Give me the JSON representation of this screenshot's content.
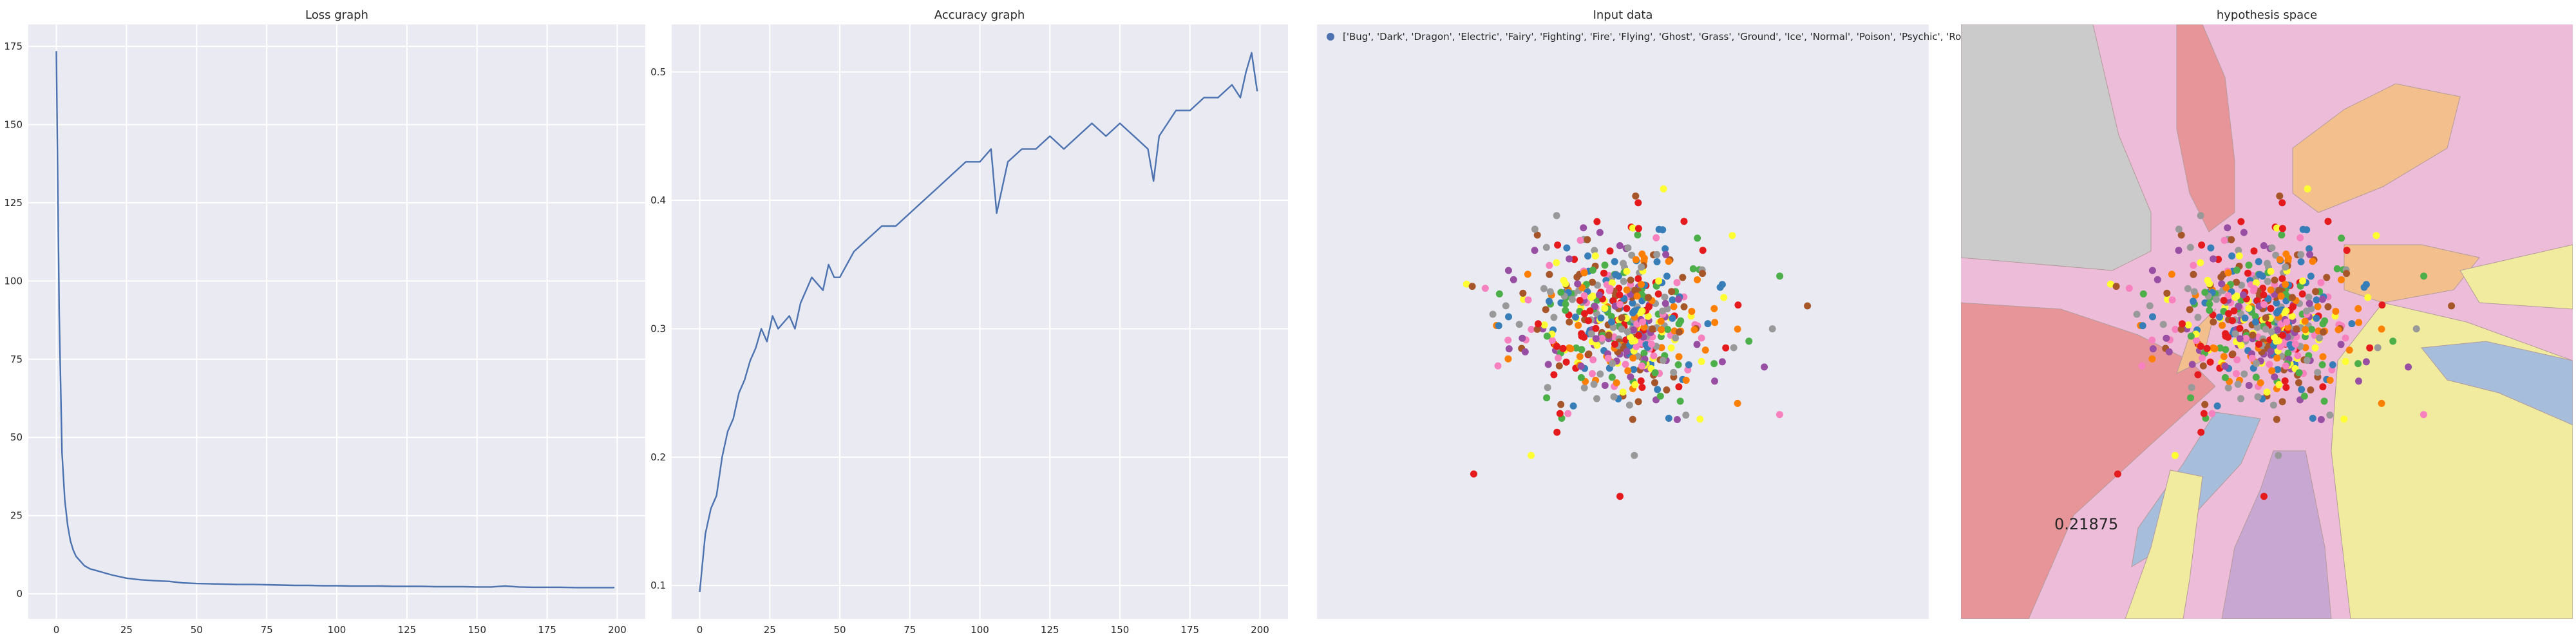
{
  "chart_data": [
    {
      "type": "line",
      "title": "Loss graph",
      "xlabel": "",
      "ylabel": "",
      "xlim": [
        -10,
        210
      ],
      "ylim": [
        -8,
        182
      ],
      "xticks": [
        "0",
        "25",
        "50",
        "75",
        "100",
        "125",
        "150",
        "175",
        "200"
      ],
      "yticks": [
        "0",
        "25",
        "50",
        "75",
        "100",
        "125",
        "150",
        "175"
      ],
      "grid": true,
      "x": [
        0,
        1,
        2,
        3,
        4,
        5,
        6,
        7,
        8,
        9,
        10,
        12,
        14,
        16,
        18,
        20,
        25,
        30,
        35,
        40,
        45,
        50,
        55,
        60,
        65,
        70,
        75,
        80,
        85,
        90,
        95,
        100,
        105,
        110,
        115,
        120,
        125,
        130,
        135,
        140,
        145,
        150,
        155,
        160,
        165,
        170,
        175,
        180,
        185,
        190,
        195,
        199
      ],
      "values": [
        173.5,
        90,
        45,
        30,
        22,
        17,
        14,
        12,
        11,
        10,
        9,
        8,
        7.5,
        7,
        6.5,
        6,
        5,
        4.5,
        4.2,
        4,
        3.5,
        3.3,
        3.2,
        3.1,
        3,
        3,
        2.9,
        2.8,
        2.7,
        2.7,
        2.6,
        2.6,
        2.5,
        2.5,
        2.5,
        2.4,
        2.4,
        2.4,
        2.3,
        2.3,
        2.3,
        2.2,
        2.2,
        2.5,
        2.2,
        2.1,
        2.1,
        2.1,
        2,
        2,
        2,
        2
      ]
    },
    {
      "type": "line",
      "title": "Accuracy graph",
      "xlabel": "",
      "ylabel": "",
      "xlim": [
        -10,
        210
      ],
      "ylim": [
        0.074,
        0.537
      ],
      "xticks": [
        "0",
        "25",
        "50",
        "75",
        "100",
        "125",
        "150",
        "175",
        "200"
      ],
      "yticks": [
        "0.1",
        "0.2",
        "0.3",
        "0.4",
        "0.5"
      ],
      "grid": true,
      "x": [
        0,
        2,
        4,
        6,
        8,
        10,
        12,
        14,
        16,
        18,
        20,
        22,
        24,
        26,
        28,
        30,
        32,
        34,
        36,
        38,
        40,
        42,
        44,
        46,
        48,
        50,
        55,
        60,
        65,
        70,
        75,
        80,
        85,
        90,
        95,
        100,
        104,
        106,
        110,
        115,
        120,
        125,
        130,
        135,
        140,
        145,
        150,
        155,
        160,
        162,
        164,
        170,
        175,
        180,
        185,
        190,
        193,
        195,
        197,
        199
      ],
      "values": [
        0.095,
        0.14,
        0.16,
        0.17,
        0.2,
        0.22,
        0.23,
        0.25,
        0.26,
        0.275,
        0.285,
        0.3,
        0.29,
        0.31,
        0.3,
        0.305,
        0.31,
        0.3,
        0.32,
        0.33,
        0.34,
        0.335,
        0.33,
        0.35,
        0.34,
        0.34,
        0.36,
        0.37,
        0.38,
        0.38,
        0.39,
        0.4,
        0.41,
        0.42,
        0.43,
        0.43,
        0.44,
        0.39,
        0.43,
        0.44,
        0.44,
        0.45,
        0.44,
        0.45,
        0.46,
        0.45,
        0.46,
        0.45,
        0.44,
        0.415,
        0.45,
        0.47,
        0.47,
        0.48,
        0.48,
        0.49,
        0.48,
        0.5,
        0.515,
        0.485
      ]
    },
    {
      "type": "scatter",
      "title": "Input data",
      "legend": [
        "['Bug', 'Dark', 'Dragon', 'Electric', 'Fairy', 'Fighting', 'Fire', 'Flying', 'Ghost', 'Grass', 'Ground', 'Ice', 'Normal', 'Poison', 'Psychic', 'Rock', 'Steel', 'Water']"
      ],
      "legend_position": "top-left",
      "xlim": [
        -4,
        4
      ],
      "ylim": [
        -4,
        4
      ],
      "grid": false,
      "palette": [
        "#e41a1c",
        "#377eb8",
        "#4daf4a",
        "#984ea3",
        "#ff7f00",
        "#ffff33",
        "#a65628",
        "#f781bf",
        "#999999"
      ],
      "points": [
        {
          "x": -1.95,
          "y": -2.05,
          "c": 0
        },
        {
          "x": 0.2,
          "y": 1.6,
          "c": 0
        },
        {
          "x": 0.8,
          "y": 1.35,
          "c": 0
        },
        {
          "x": 2.05,
          "y": -1.25,
          "c": 7
        },
        {
          "x": -1.8,
          "y": 0.45,
          "c": 7
        },
        {
          "x": 1.45,
          "y": -0.35,
          "c": 8
        },
        {
          "x": 1.5,
          "y": -0.1,
          "c": 4
        },
        {
          "x": -1.5,
          "y": -0.5,
          "c": 4
        },
        {
          "x": -1.7,
          "y": 0.1,
          "c": 8
        },
        {
          "x": -1.2,
          "y": -1.8,
          "c": 5
        },
        {
          "x": 0.15,
          "y": -1.8,
          "c": 8
        },
        {
          "x": 1.5,
          "y": -1.1,
          "c": 4
        },
        {
          "x": -1.0,
          "y": 1.0,
          "c": 8
        },
        {
          "x": -0.3,
          "y": 1.2,
          "c": 3
        },
        {
          "x": 0.4,
          "y": 0.9,
          "c": 6
        },
        {
          "x": 1.0,
          "y": 0.7,
          "c": 2
        },
        {
          "x": -0.8,
          "y": -1.3,
          "c": 2
        },
        {
          "x": 1.2,
          "y": -0.8,
          "c": 3
        },
        {
          "x": 0.6,
          "y": -1.3,
          "c": 1
        },
        {
          "x": -0.6,
          "y": 0.6,
          "c": 6
        },
        {
          "x": 0.3,
          "y": -0.6,
          "c": 0
        },
        {
          "x": -0.2,
          "y": 0.2,
          "c": 4
        },
        {
          "x": 0.8,
          "y": 0.2,
          "c": 6
        },
        {
          "x": -0.9,
          "y": -0.3,
          "c": 0
        },
        {
          "x": 0.1,
          "y": 0.5,
          "c": 7
        },
        {
          "x": 0.5,
          "y": -0.2,
          "c": 2
        },
        {
          "x": -0.4,
          "y": -0.7,
          "c": 7
        },
        {
          "x": 1.3,
          "y": 0.5,
          "c": 1
        },
        {
          "x": -1.3,
          "y": 0.3,
          "c": 5
        },
        {
          "x": 0.0,
          "y": -1.0,
          "c": 6
        }
      ]
    },
    {
      "type": "heatmap",
      "title": "hypothesis space",
      "annotation": "0.21875",
      "grid": false,
      "region_colors": [
        "#e8959a",
        "#a6bddb",
        "#f0eb9e",
        "#c9a7d3",
        "#f3c08d",
        "#edbcd9",
        "#cbcbcb"
      ]
    }
  ]
}
